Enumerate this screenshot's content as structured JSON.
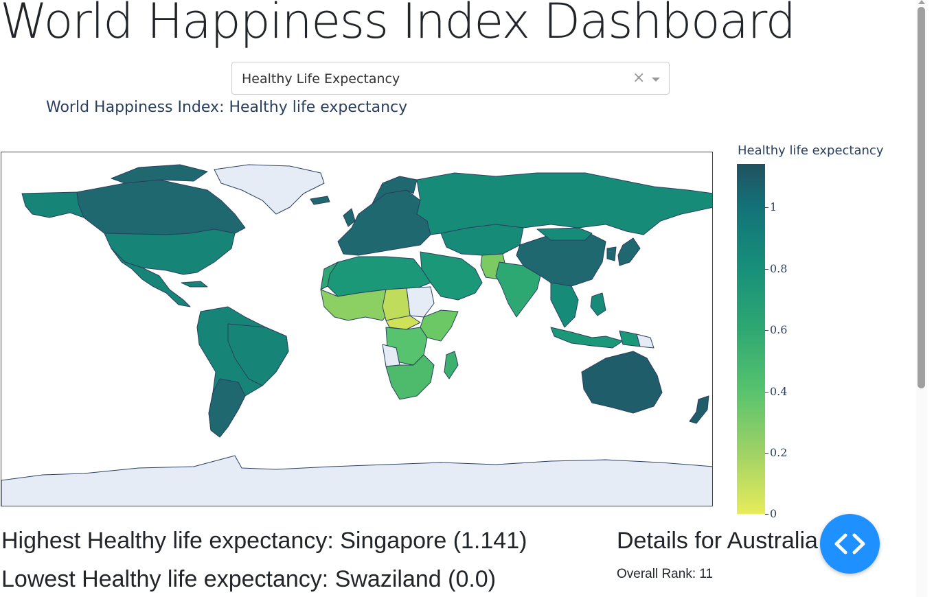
{
  "page": {
    "title": "World Happiness Index Dashboard"
  },
  "dropdown": {
    "selected": "Healthy Life Expectancy",
    "clear_icon": "×"
  },
  "map": {
    "title": "World Happiness Index: Healthy life expectancy",
    "colorbar_title": "Healthy life expectancy",
    "colorbar_ticks": [
      "1",
      "0.8",
      "0.6",
      "0.4",
      "0.2",
      "0"
    ],
    "colorscale": [
      "#e8ec5a",
      "#9fd266",
      "#58c36e",
      "#2ea872",
      "#17907a",
      "#137278",
      "#21515f"
    ],
    "no_data_color": "#e5ecf6",
    "border_color": "#2a3f5f"
  },
  "stats": {
    "highest": "Highest Healthy life expectancy: Singapore (1.141)",
    "lowest": "Lowest Healthy life expectancy: Swaziland (0.0)"
  },
  "details": {
    "heading": "Details for Australia",
    "overall_rank": "Overall Rank: 11"
  },
  "debug": {
    "icon": "code-chevrons-icon",
    "color": "#1e90ff"
  }
}
